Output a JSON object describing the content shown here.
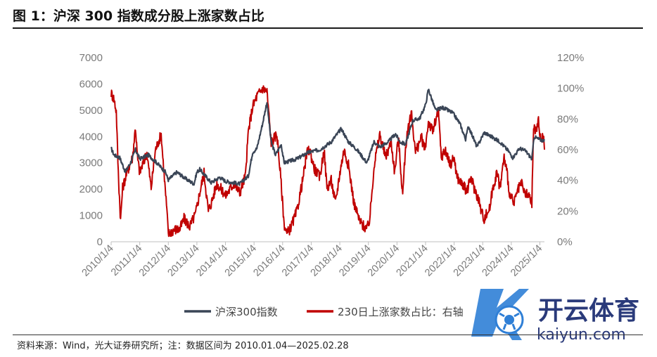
{
  "title": "图 1：沪深 300 指数成分股上涨家数占比",
  "source": "资料来源：Wind，光大证券研究所；注：数据区间为 2010.01.04—2025.02.28",
  "watermark": {
    "brand": "开云体育",
    "domain": "kaiyun.com"
  },
  "colors": {
    "index": "#3a4556",
    "ratio": "#c00000",
    "tick": "#7a7a7a"
  },
  "chart_data": {
    "type": "line",
    "x": [
      "2010/1/4",
      "2011/1/4",
      "2012/1/4",
      "2013/1/4",
      "2014/1/4",
      "2015/1/4",
      "2016/1/4",
      "2017/1/4",
      "2018/1/4",
      "2019/1/4",
      "2020/1/4",
      "2021/1/4",
      "2022/1/4",
      "2023/1/4",
      "2024/1/4",
      "2025/1/4"
    ],
    "y_left": {
      "ticks": [
        "0",
        "1000",
        "2000",
        "3000",
        "4000",
        "5000",
        "6000",
        "7000"
      ],
      "ylim": [
        0,
        7000
      ]
    },
    "y_right": {
      "ticks": [
        "0%",
        "20%",
        "40%",
        "60%",
        "80%",
        "100%",
        "120%"
      ],
      "ylim": [
        0,
        1.2
      ]
    },
    "series": [
      {
        "name": "沪深300指数",
        "axis": "left",
        "points": [
          [
            2010.0,
            3550
          ],
          [
            2010.1,
            3300
          ],
          [
            2010.3,
            3200
          ],
          [
            2010.5,
            2650
          ],
          [
            2010.7,
            3050
          ],
          [
            2010.85,
            3500
          ],
          [
            2011.0,
            3150
          ],
          [
            2011.3,
            3300
          ],
          [
            2011.6,
            3000
          ],
          [
            2011.9,
            2650
          ],
          [
            2012.0,
            2350
          ],
          [
            2012.3,
            2650
          ],
          [
            2012.6,
            2400
          ],
          [
            2012.9,
            2200
          ],
          [
            2013.0,
            2650
          ],
          [
            2013.1,
            2750
          ],
          [
            2013.5,
            2250
          ],
          [
            2013.8,
            2450
          ],
          [
            2014.0,
            2300
          ],
          [
            2014.5,
            2200
          ],
          [
            2014.8,
            2500
          ],
          [
            2014.95,
            3400
          ],
          [
            2015.1,
            3550
          ],
          [
            2015.3,
            4500
          ],
          [
            2015.45,
            5300
          ],
          [
            2015.6,
            3800
          ],
          [
            2015.75,
            3300
          ],
          [
            2015.95,
            3700
          ],
          [
            2016.05,
            3000
          ],
          [
            2016.5,
            3150
          ],
          [
            2016.9,
            3400
          ],
          [
            2017.3,
            3500
          ],
          [
            2017.7,
            3800
          ],
          [
            2018.05,
            4300
          ],
          [
            2018.3,
            3800
          ],
          [
            2018.6,
            3500
          ],
          [
            2018.95,
            3000
          ],
          [
            2019.2,
            3800
          ],
          [
            2019.4,
            3600
          ],
          [
            2019.7,
            3800
          ],
          [
            2019.95,
            4100
          ],
          [
            2020.1,
            3800
          ],
          [
            2020.3,
            3700
          ],
          [
            2020.55,
            4600
          ],
          [
            2020.8,
            4700
          ],
          [
            2021.0,
            5200
          ],
          [
            2021.1,
            5800
          ],
          [
            2021.35,
            5000
          ],
          [
            2021.6,
            5100
          ],
          [
            2021.95,
            4900
          ],
          [
            2022.2,
            4500
          ],
          [
            2022.4,
            3900
          ],
          [
            2022.5,
            4400
          ],
          [
            2022.8,
            3600
          ],
          [
            2023.05,
            4150
          ],
          [
            2023.3,
            4000
          ],
          [
            2023.6,
            3800
          ],
          [
            2023.9,
            3450
          ],
          [
            2024.05,
            3200
          ],
          [
            2024.3,
            3550
          ],
          [
            2024.5,
            3450
          ],
          [
            2024.72,
            3150
          ],
          [
            2024.8,
            4000
          ],
          [
            2024.95,
            3900
          ],
          [
            2025.1,
            3850
          ],
          [
            2025.15,
            3900
          ]
        ]
      },
      {
        "name": "230日上涨家数占比：右轴",
        "axis": "right",
        "points": [
          [
            2010.0,
            0.97
          ],
          [
            2010.1,
            0.93
          ],
          [
            2010.18,
            0.85
          ],
          [
            2010.25,
            0.45
          ],
          [
            2010.33,
            0.14
          ],
          [
            2010.4,
            0.35
          ],
          [
            2010.55,
            0.45
          ],
          [
            2010.75,
            0.55
          ],
          [
            2010.85,
            0.75
          ],
          [
            2010.92,
            0.55
          ],
          [
            2011.0,
            0.45
          ],
          [
            2011.25,
            0.58
          ],
          [
            2011.4,
            0.35
          ],
          [
            2011.55,
            0.6
          ],
          [
            2011.75,
            0.7
          ],
          [
            2011.85,
            0.45
          ],
          [
            2011.95,
            0.2
          ],
          [
            2012.0,
            0.05
          ],
          [
            2012.2,
            0.08
          ],
          [
            2012.4,
            0.08
          ],
          [
            2012.55,
            0.15
          ],
          [
            2012.75,
            0.1
          ],
          [
            2012.95,
            0.18
          ],
          [
            2013.1,
            0.32
          ],
          [
            2013.25,
            0.45
          ],
          [
            2013.4,
            0.2
          ],
          [
            2013.5,
            0.25
          ],
          [
            2013.7,
            0.38
          ],
          [
            2013.9,
            0.33
          ],
          [
            2014.0,
            0.3
          ],
          [
            2014.3,
            0.38
          ],
          [
            2014.5,
            0.32
          ],
          [
            2014.7,
            0.43
          ],
          [
            2014.8,
            0.72
          ],
          [
            2014.95,
            0.88
          ],
          [
            2015.1,
            0.95
          ],
          [
            2015.3,
            1.0
          ],
          [
            2015.45,
            0.98
          ],
          [
            2015.6,
            0.65
          ],
          [
            2015.8,
            0.7
          ],
          [
            2015.92,
            0.45
          ],
          [
            2016.05,
            0.12
          ],
          [
            2016.15,
            0.05
          ],
          [
            2016.3,
            0.1
          ],
          [
            2016.5,
            0.2
          ],
          [
            2016.7,
            0.4
          ],
          [
            2016.85,
            0.58
          ],
          [
            2016.95,
            0.6
          ],
          [
            2017.1,
            0.48
          ],
          [
            2017.3,
            0.42
          ],
          [
            2017.45,
            0.6
          ],
          [
            2017.55,
            0.35
          ],
          [
            2017.7,
            0.4
          ],
          [
            2017.85,
            0.25
          ],
          [
            2018.0,
            0.45
          ],
          [
            2018.15,
            0.6
          ],
          [
            2018.3,
            0.5
          ],
          [
            2018.5,
            0.25
          ],
          [
            2018.7,
            0.13
          ],
          [
            2018.95,
            0.08
          ],
          [
            2019.05,
            0.15
          ],
          [
            2019.2,
            0.5
          ],
          [
            2019.4,
            0.7
          ],
          [
            2019.6,
            0.55
          ],
          [
            2019.8,
            0.65
          ],
          [
            2019.92,
            0.45
          ],
          [
            2020.05,
            0.68
          ],
          [
            2020.2,
            0.3
          ],
          [
            2020.3,
            0.62
          ],
          [
            2020.5,
            0.85
          ],
          [
            2020.65,
            0.58
          ],
          [
            2020.85,
            0.68
          ],
          [
            2020.98,
            0.6
          ],
          [
            2021.1,
            0.78
          ],
          [
            2021.25,
            0.72
          ],
          [
            2021.45,
            0.85
          ],
          [
            2021.55,
            0.55
          ],
          [
            2021.7,
            0.6
          ],
          [
            2021.85,
            0.5
          ],
          [
            2022.0,
            0.55
          ],
          [
            2022.1,
            0.42
          ],
          [
            2022.3,
            0.37
          ],
          [
            2022.45,
            0.33
          ],
          [
            2022.6,
            0.42
          ],
          [
            2022.7,
            0.35
          ],
          [
            2022.85,
            0.28
          ],
          [
            2022.95,
            0.2
          ],
          [
            2023.05,
            0.15
          ],
          [
            2023.25,
            0.22
          ],
          [
            2023.35,
            0.35
          ],
          [
            2023.5,
            0.45
          ],
          [
            2023.6,
            0.35
          ],
          [
            2023.75,
            0.55
          ],
          [
            2023.85,
            0.45
          ],
          [
            2023.95,
            0.3
          ],
          [
            2024.1,
            0.25
          ],
          [
            2024.2,
            0.32
          ],
          [
            2024.35,
            0.38
          ],
          [
            2024.45,
            0.32
          ],
          [
            2024.6,
            0.3
          ],
          [
            2024.72,
            0.25
          ],
          [
            2024.78,
            0.75
          ],
          [
            2024.85,
            0.72
          ],
          [
            2024.95,
            0.78
          ],
          [
            2025.05,
            0.65
          ],
          [
            2025.12,
            0.7
          ],
          [
            2025.16,
            0.6
          ]
        ]
      }
    ],
    "legend": {
      "position": "bottom",
      "entries": [
        "沪深300指数",
        "230日上涨家数占比：右轴"
      ]
    },
    "grid": false
  }
}
